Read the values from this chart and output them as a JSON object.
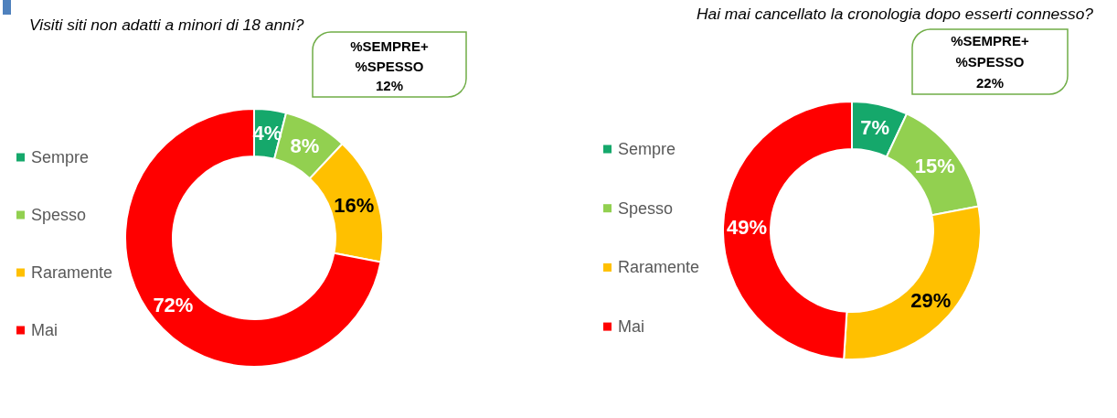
{
  "chart_data": [
    {
      "type": "donut",
      "title": "Visiti siti non adatti a minori di 18 anni?",
      "categories": [
        "Sempre",
        "Spesso",
        "Raramente",
        "Mai"
      ],
      "values": [
        4,
        8,
        16,
        72
      ],
      "colors": [
        "#15a86b",
        "#92d050",
        "#ffc000",
        "#ff0000"
      ],
      "value_labels": [
        "4%",
        "8%",
        "16%",
        "72%"
      ],
      "legend": "left",
      "annotations": [
        "%SEMPRE+\n%SPESSO\n12%"
      ]
    },
    {
      "type": "donut",
      "title": "Hai mai cancellato la cronologia dopo esserti connesso?",
      "categories": [
        "Sempre",
        "Spesso",
        "Raramente",
        "Mai"
      ],
      "values": [
        7,
        15,
        29,
        49
      ],
      "colors": [
        "#15a86b",
        "#92d050",
        "#ffc000",
        "#ff0000"
      ],
      "value_labels": [
        "7%",
        "15%",
        "29%",
        "49%"
      ],
      "legend": "left",
      "annotations": [
        "%SEMPRE+\n%SPESSO\n22%"
      ]
    }
  ]
}
